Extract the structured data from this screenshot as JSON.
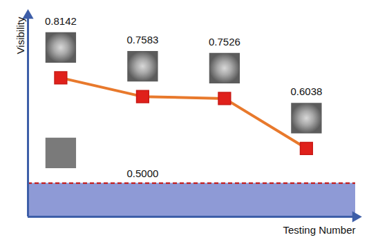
{
  "chart_data": {
    "type": "line",
    "x_label": "Testing Number",
    "y_label": "Visibility",
    "x": [
      1,
      2,
      3,
      4
    ],
    "values": [
      0.8142,
      0.7583,
      0.7526,
      0.6038
    ],
    "xlim": [
      0.6,
      4.6
    ],
    "ylim": [
      0.4,
      1.0
    ],
    "xticks": [],
    "yticks": [],
    "tick_labels": false,
    "data_labels": true,
    "grid": false,
    "color": "#e8792c",
    "marker": "square",
    "baseline": {
      "value": 0.5,
      "label": "0.5000",
      "color": "#c0282d",
      "line_style": "dashed"
    }
  }
}
